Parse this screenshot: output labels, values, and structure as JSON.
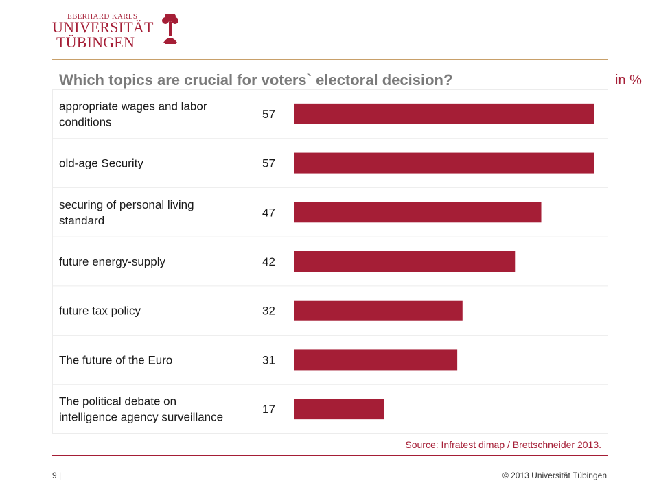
{
  "header": {
    "logo_line1": "EBERHARD KARLS",
    "logo_line2": "UNIVERSITÄT",
    "logo_line3": "TÜBINGEN"
  },
  "chart_data": {
    "type": "bar",
    "orientation": "horizontal",
    "title": "Which topics are crucial for voters` electoral decision?",
    "unit_label": "in %",
    "categories": [
      [
        "appropriate wages and labor",
        "conditions"
      ],
      [
        "old-age Security"
      ],
      [
        "securing of personal living",
        "standard"
      ],
      [
        "future energy-supply"
      ],
      [
        "future tax policy"
      ],
      [
        "The future of the Euro"
      ],
      [
        "The political debate on",
        "intelligence agency surveillance"
      ]
    ],
    "values": [
      57,
      57,
      47,
      42,
      32,
      31,
      17
    ],
    "xlim": [
      0,
      57
    ],
    "bar_color": "#a51e36",
    "grid": false
  },
  "source": "Source: Infratest dimap / Brettschneider 2013.",
  "footer": {
    "page_number": "9 |",
    "copyright": "© 2013 Universität Tübingen"
  }
}
